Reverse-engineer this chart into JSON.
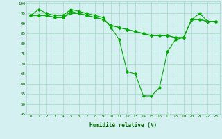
{
  "title": "",
  "xlabel": "Humidité relative (%)",
  "ylabel": "",
  "bg_color": "#d4f0f0",
  "grid_color": "#aaddcc",
  "line_color": "#00aa00",
  "marker_color": "#00aa00",
  "xlim": [
    -0.5,
    23.5
  ],
  "ylim": [
    45,
    101
  ],
  "yticks": [
    45,
    50,
    55,
    60,
    65,
    70,
    75,
    80,
    85,
    90,
    95,
    100
  ],
  "xticks": [
    0,
    1,
    2,
    3,
    4,
    5,
    6,
    7,
    8,
    9,
    10,
    11,
    12,
    13,
    14,
    15,
    16,
    17,
    18,
    19,
    20,
    21,
    22,
    23
  ],
  "line1": [
    94,
    97,
    95,
    94,
    94,
    97,
    96,
    95,
    94,
    93,
    88,
    82,
    66,
    65,
    54,
    54,
    58,
    76,
    82,
    83,
    92,
    95,
    91,
    91
  ],
  "line2": [
    94,
    94,
    94,
    93,
    93,
    96,
    95,
    94,
    93,
    92,
    89,
    88,
    87,
    86,
    85,
    84,
    84,
    84,
    83,
    83,
    92,
    92,
    91,
    91
  ],
  "line3": [
    94,
    94,
    94,
    93,
    93,
    95,
    95,
    94,
    93,
    92,
    89,
    88,
    87,
    86,
    85,
    84,
    84,
    84,
    83,
    83,
    92,
    92,
    91,
    91
  ]
}
